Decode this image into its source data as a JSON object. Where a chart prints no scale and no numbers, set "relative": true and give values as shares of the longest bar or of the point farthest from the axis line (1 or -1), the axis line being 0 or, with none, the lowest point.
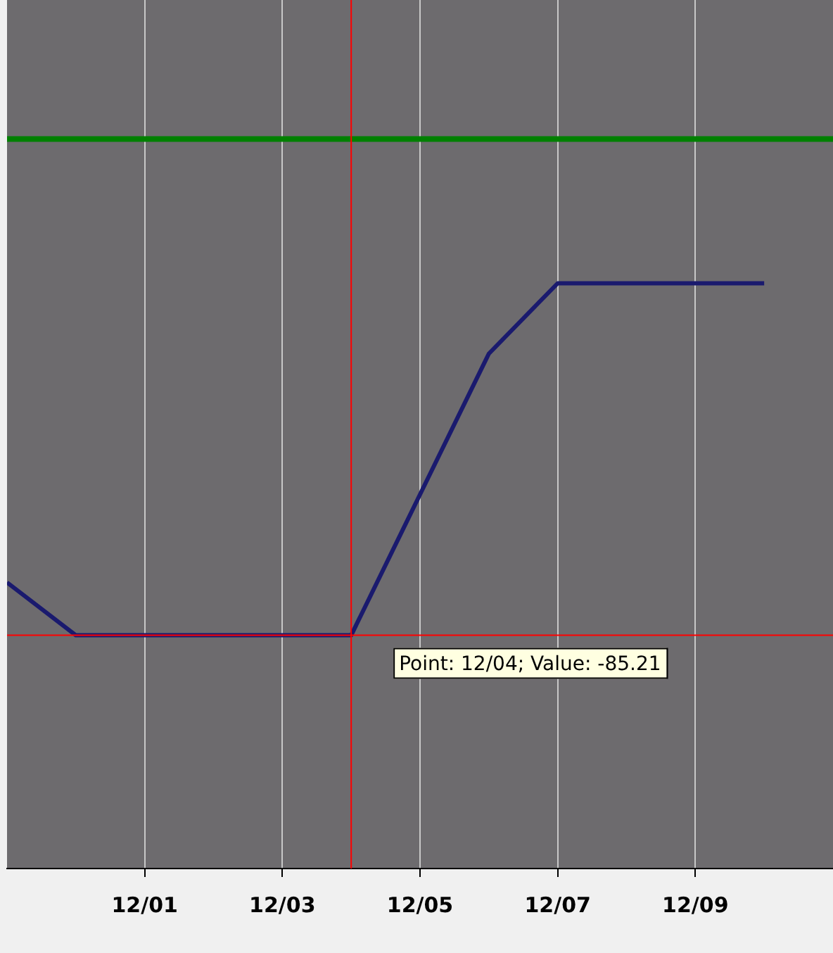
{
  "chart_data": {
    "type": "line",
    "relative": true,
    "x": [
      "--11-29",
      "--11-30",
      "--12-01",
      "--12-02",
      "--12-03",
      "--12-04",
      "--12-05",
      "--12-06",
      "--12-07",
      "--12-08",
      "--12-09",
      "--12-10"
    ],
    "series": [
      {
        "color": "#1a1a6e",
        "values": [
          0.15,
          0,
          0,
          0,
          0,
          0,
          0.4,
          0.8,
          1,
          1,
          1,
          1
        ]
      }
    ],
    "xlim": [
      "--11-29",
      "--12-11"
    ],
    "xticks": [
      {
        "value": "--12-01",
        "label": "12/01"
      },
      {
        "value": "--12-03",
        "label": "12/03"
      },
      {
        "value": "--12-05",
        "label": "12/05"
      },
      {
        "value": "--12-07",
        "label": "12/07"
      },
      {
        "value": "--12-09",
        "label": "12/09"
      }
    ],
    "grid": "x",
    "marker": "none",
    "line_style": "solid",
    "legend": false,
    "ref_lines": [
      {
        "axis": "y",
        "value": 1.41,
        "color": "#008000"
      },
      {
        "axis": "x",
        "value": "--12-04",
        "color": "#ff0000"
      },
      {
        "axis": "y",
        "value": 0,
        "color": "#ff0000"
      }
    ],
    "annotations": [
      {
        "text": "Point: 12/04; Value: -85.21",
        "x": "--12-04",
        "y": 0
      }
    ]
  }
}
